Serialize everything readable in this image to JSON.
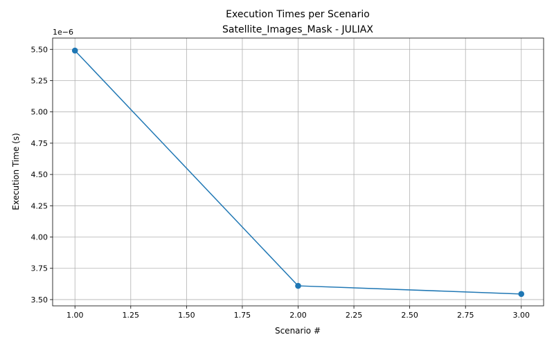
{
  "chart_data": {
    "type": "line",
    "title": "Execution Times per Scenario",
    "subtitle": "Satellite_Images_Mask - JULIAX",
    "xlabel": "Scenario #",
    "ylabel": "Execution Time (s)",
    "y_offset_label": "1e−6",
    "x": [
      1,
      2,
      3
    ],
    "series": [
      {
        "values": [
          5.49e-06,
          3.61e-06,
          3.545e-06
        ]
      }
    ],
    "xlim": [
      0.9,
      3.1
    ],
    "ylim": [
      3.45e-06,
      5.59e-06
    ],
    "x_ticks": [
      1.0,
      1.25,
      1.5,
      1.75,
      2.0,
      2.25,
      2.5,
      2.75,
      3.0
    ],
    "x_tick_labels": [
      "1.00",
      "1.25",
      "1.50",
      "1.75",
      "2.00",
      "2.25",
      "2.50",
      "2.75",
      "3.00"
    ],
    "y_ticks": [
      3.5e-06,
      3.75e-06,
      4e-06,
      4.25e-06,
      4.5e-06,
      4.75e-06,
      5e-06,
      5.25e-06,
      5.5e-06
    ],
    "y_tick_labels": [
      "3.50",
      "3.75",
      "4.00",
      "4.25",
      "4.50",
      "4.75",
      "5.00",
      "5.25",
      "5.50"
    ],
    "grid": true,
    "line_color": "#1f77b4",
    "marker": "circle"
  }
}
